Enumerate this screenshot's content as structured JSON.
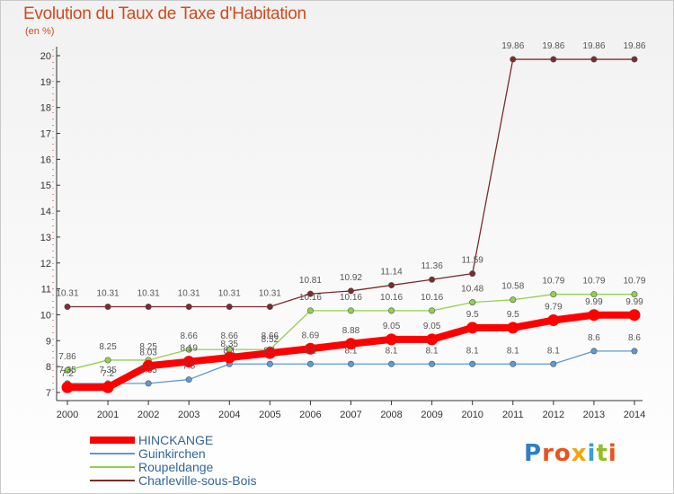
{
  "title": "Evolution du Taux de Taxe d'Habitation",
  "subtitle": "(en %)",
  "logo": {
    "letters": [
      "P",
      "r",
      "o",
      "x",
      "i",
      "t",
      "i"
    ],
    "letter_colors": [
      "#2f7fc4",
      "#e8541c",
      "#e8541c",
      "#f2a60c",
      "#3a9ed8",
      "#93c020",
      "#e8541c"
    ]
  },
  "chart_data": {
    "type": "line",
    "title": "Evolution du Taux de Taxe d'Habitation",
    "ylabel": "(en %)",
    "x": [
      "2000",
      "2001",
      "2002",
      "2003",
      "2004",
      "2005",
      "2006",
      "2007",
      "2008",
      "2009",
      "2010",
      "2011",
      "2012",
      "2013",
      "2014"
    ],
    "ylim": [
      7,
      20
    ],
    "yticks": [
      7,
      8,
      9,
      10,
      11,
      12,
      13,
      14,
      15,
      16,
      17,
      18,
      19,
      20
    ],
    "legend_position": "bottom-left",
    "grid": false,
    "series": [
      {
        "name": "HINCKANGE",
        "color": "#ff0000",
        "values": [
          7.2,
          7.2,
          8.03,
          8.19,
          8.35,
          8.52,
          8.69,
          8.88,
          9.05,
          9.05,
          9.5,
          9.5,
          9.79,
          9.99,
          9.99
        ],
        "labels": [
          "7.2",
          "7.2",
          "8.03",
          "8.19",
          "8.35",
          "8.52",
          "8.69",
          "8.88",
          "9.05",
          "9.05",
          "9.5",
          "9.5",
          "9.79",
          "9.99",
          "9.99"
        ]
      },
      {
        "name": "Guinkirchen",
        "color": "#5b9bd5",
        "values": [
          7.35,
          7.35,
          7.35,
          7.5,
          8.1,
          8.1,
          8.1,
          8.1,
          8.1,
          8.1,
          8.1,
          8.1,
          8.1,
          8.6,
          8.6
        ],
        "labels": [
          "7.35",
          "7.35",
          "7.35",
          "7.5",
          "8.1",
          "8.1",
          "8.1",
          "8.1",
          "8.1",
          "8.1",
          "8.1",
          "8.1",
          "8.1",
          "8.6",
          "8.6"
        ]
      },
      {
        "name": "Roupeldange",
        "color": "#92d050",
        "values": [
          7.86,
          8.25,
          8.25,
          8.66,
          8.66,
          8.66,
          10.16,
          10.16,
          10.16,
          10.16,
          10.48,
          10.58,
          10.79,
          10.79,
          10.79
        ],
        "labels": [
          "7.86",
          "8.25",
          "8.25",
          "8.66",
          "8.66",
          "8.66",
          "10.16",
          "10.16",
          "10.16",
          "10.16",
          "10.48",
          "10.58",
          "10.79",
          "10.79",
          "10.79"
        ]
      },
      {
        "name": "Charleville-sous-Bois",
        "color": "#7b2c2c",
        "values": [
          10.31,
          10.31,
          10.31,
          10.31,
          10.31,
          10.31,
          10.81,
          10.92,
          11.14,
          11.36,
          11.59,
          19.86,
          19.86,
          19.86,
          19.86
        ],
        "labels": [
          "10.31",
          "10.31",
          "10.31",
          "10.31",
          "10.31",
          "10.31",
          "10.81",
          "10.92",
          "11.14",
          "11.36",
          "11.59",
          "19.86",
          "19.86",
          "19.86",
          "19.86"
        ]
      }
    ]
  }
}
